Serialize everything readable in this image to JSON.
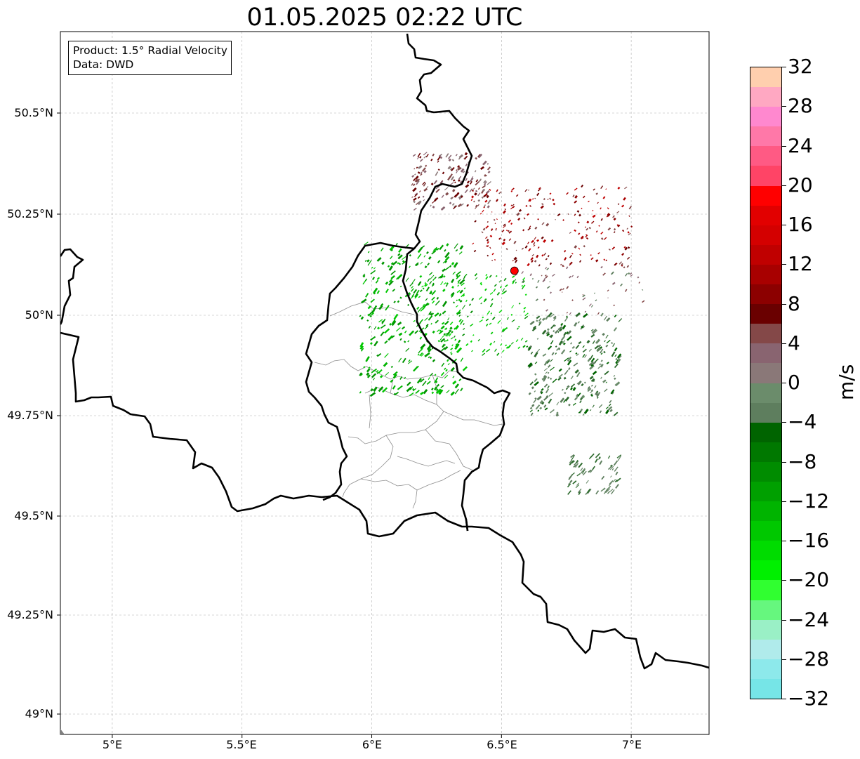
{
  "title": "01.05.2025 02:22 UTC",
  "info_box": {
    "product": "Product: 1.5° Radial Velocity",
    "data": "Data: DWD"
  },
  "axes": {
    "lat_labels": [
      "50.5°N",
      "50.25°N",
      "50°N",
      "49.75°N",
      "49.5°N",
      "49.25°N",
      "49°N"
    ],
    "lon_labels": [
      "5°E",
      "5.5°E",
      "6°E",
      "6.5°E",
      "7°E"
    ],
    "lat_values": [
      50.5,
      50.25,
      50.0,
      49.75,
      49.5,
      49.25,
      49.0
    ],
    "lon_values": [
      5.0,
      5.5,
      6.0,
      6.5,
      7.0
    ],
    "lon_range": [
      4.8,
      7.3
    ],
    "lat_range": [
      48.95,
      50.7
    ],
    "grid": true
  },
  "radar_site": {
    "lon": 6.55,
    "lat": 50.11,
    "color": "#ff0000"
  },
  "colorbar": {
    "unit": "m/s",
    "min": -32,
    "max": 32,
    "tick_labels": [
      "32",
      "28",
      "24",
      "20",
      "16",
      "12",
      "8",
      "4",
      "0",
      "−4",
      "−8",
      "−12",
      "−16",
      "−20",
      "−24",
      "−28",
      "−32"
    ],
    "colors_top_to_bottom": [
      "#ffcfae",
      "#ffa8c2",
      "#ff88cf",
      "#ff78a8",
      "#ff5a84",
      "#ff4466",
      "#ff0000",
      "#e20000",
      "#d40000",
      "#c00000",
      "#a80000",
      "#8c0000",
      "#6a0000",
      "#844848",
      "#896470",
      "#8a7878",
      "#6b8c6b",
      "#5e7e5e",
      "#006400",
      "#007800",
      "#008c00",
      "#00a000",
      "#00b400",
      "#00c800",
      "#00dc00",
      "#00f000",
      "#30ff30",
      "#66f77e",
      "#9af0c6",
      "#b0ebeb",
      "#8de9eb",
      "#76e5e7"
    ]
  },
  "colors": {
    "border": "#000000",
    "admin_lines": "#8c8c8c",
    "grid": "#b0b0b0",
    "velocity_outbound": "#b00000",
    "velocity_inbound": "#00a000",
    "velocity_near_zero": "#5e7e5e"
  }
}
